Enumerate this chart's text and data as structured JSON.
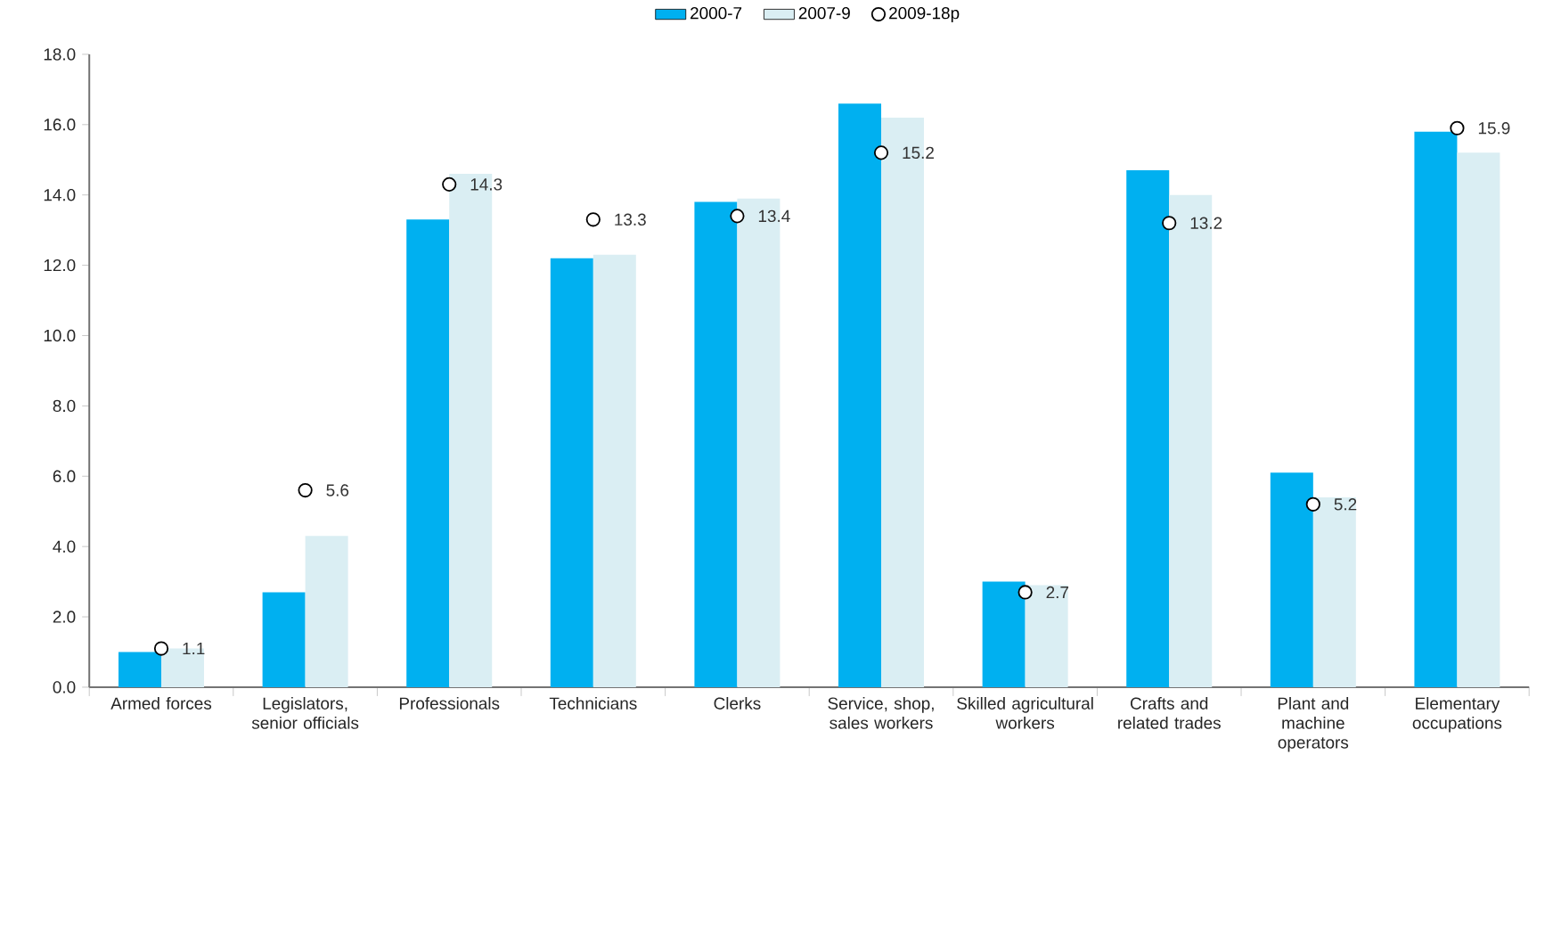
{
  "chart_data": {
    "type": "bar",
    "categories": [
      "Armed forces",
      "Legislators, senior officials",
      "Professionals",
      "Technicians",
      "Clerks",
      "Service, shop, sales workers",
      "Skilled agricultural workers",
      "Crafts and related trades",
      "Plant and machine operators",
      "Elementary occupations"
    ],
    "series": [
      {
        "name": "2000-7",
        "color": "#00b0f0",
        "values": [
          1.0,
          2.7,
          13.3,
          12.2,
          13.8,
          16.6,
          3.0,
          14.7,
          6.1,
          15.8
        ]
      },
      {
        "name": "2007-9",
        "color": "#daeef3",
        "values": [
          1.1,
          4.3,
          14.6,
          12.3,
          13.9,
          16.2,
          2.9,
          14.0,
          5.4,
          15.2
        ]
      },
      {
        "name": "2009-18p",
        "type": "scatter",
        "color": "#ffffff",
        "marker": "circle",
        "x": [
          "Armed forces",
          "Legislators, senior officials",
          "Professionals",
          "Technicians",
          "Clerks",
          "Service, shop, sales workers",
          "Skilled agricultural workers",
          "Crafts and related trades",
          "Plant and machine operators",
          "Elementary occupations"
        ],
        "values": [
          1.1,
          5.6,
          14.3,
          13.3,
          13.4,
          15.2,
          2.7,
          13.2,
          5.2,
          15.9
        ],
        "value_labels": [
          "1.1",
          "5.6",
          "14.3",
          "13.3",
          "13.4",
          "15.2",
          "2.7",
          "13.2",
          "5.2",
          "15.9"
        ]
      }
    ],
    "ylim": [
      0,
      18
    ],
    "yticks": [
      {
        "value": 0,
        "label": "0.0"
      },
      {
        "value": 2,
        "label": "2.0"
      },
      {
        "value": 4,
        "label": "4.0"
      },
      {
        "value": 6,
        "label": "6.0"
      },
      {
        "value": 8,
        "label": "8.0"
      },
      {
        "value": 10,
        "label": "10.0"
      },
      {
        "value": 12,
        "label": "12.0"
      },
      {
        "value": 14,
        "label": "14.0"
      },
      {
        "value": 16,
        "label": "16.0"
      },
      {
        "value": 18,
        "label": "18.0"
      }
    ],
    "grid": false,
    "legend": "top"
  }
}
